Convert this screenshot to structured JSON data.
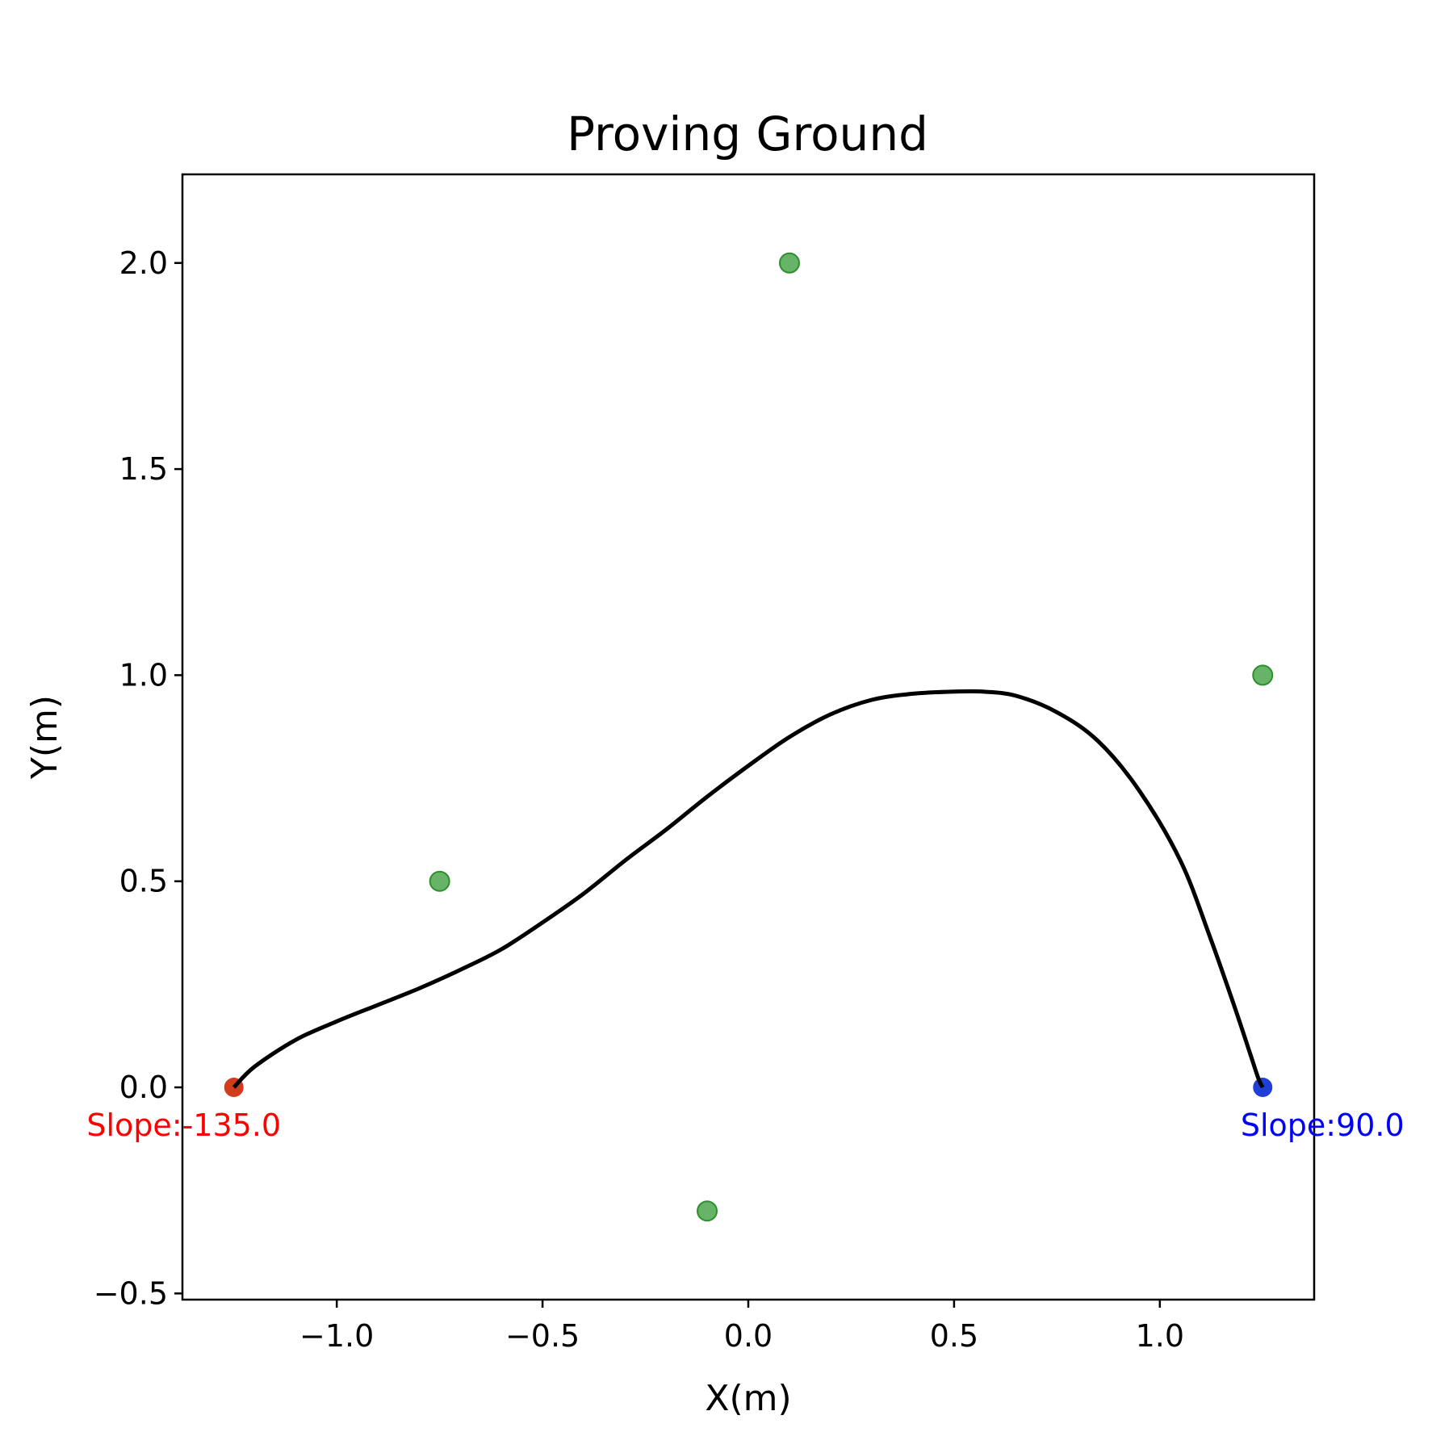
{
  "chart_data": {
    "type": "line",
    "title": "Proving Ground",
    "xlabel": "X(m)",
    "ylabel": "Y(m)",
    "xlim": [
      -1.375,
      1.375
    ],
    "ylim": [
      -0.515,
      2.215
    ],
    "grid": false,
    "xticks": [
      -1.0,
      -0.5,
      0.0,
      0.5,
      1.0
    ],
    "xtick_labels": [
      "−1.0",
      "−0.5",
      "0.0",
      "0.5",
      "1.0"
    ],
    "yticks": [
      -0.5,
      0.0,
      0.5,
      1.0,
      1.5,
      2.0
    ],
    "ytick_labels": [
      "−0.5",
      "0.0",
      "0.5",
      "1.0",
      "1.5",
      "2.0"
    ],
    "path": {
      "color": "#000000",
      "x": [
        -1.25,
        -1.2,
        -1.1,
        -1.0,
        -0.9,
        -0.8,
        -0.7,
        -0.6,
        -0.5,
        -0.4,
        -0.3,
        -0.2,
        -0.1,
        0.0,
        0.1,
        0.2,
        0.3,
        0.4,
        0.5,
        0.57,
        0.65,
        0.75,
        0.85,
        0.95,
        1.05,
        1.12,
        1.18,
        1.22,
        1.24,
        1.25
      ],
      "y": [
        0.0,
        0.05,
        0.115,
        0.16,
        0.2,
        0.24,
        0.285,
        0.335,
        0.4,
        0.47,
        0.55,
        0.625,
        0.705,
        0.78,
        0.85,
        0.905,
        0.94,
        0.955,
        0.96,
        0.96,
        0.95,
        0.91,
        0.84,
        0.72,
        0.55,
        0.37,
        0.2,
        0.08,
        0.02,
        0.0
      ]
    },
    "waypoints": {
      "color": "#4ca64c",
      "x": [
        0.1,
        1.25,
        -0.75,
        -0.1
      ],
      "y": [
        2.0,
        1.0,
        0.5,
        -0.3
      ]
    },
    "start": {
      "x": -1.25,
      "y": 0.0,
      "color": "#d03c1e",
      "label": "Slope:-135.0",
      "label_color": "#ff0000"
    },
    "end": {
      "x": 1.25,
      "y": 0.0,
      "color": "#1f3fd6",
      "label": "Slope:90.0",
      "label_color": "#0000ff"
    }
  }
}
